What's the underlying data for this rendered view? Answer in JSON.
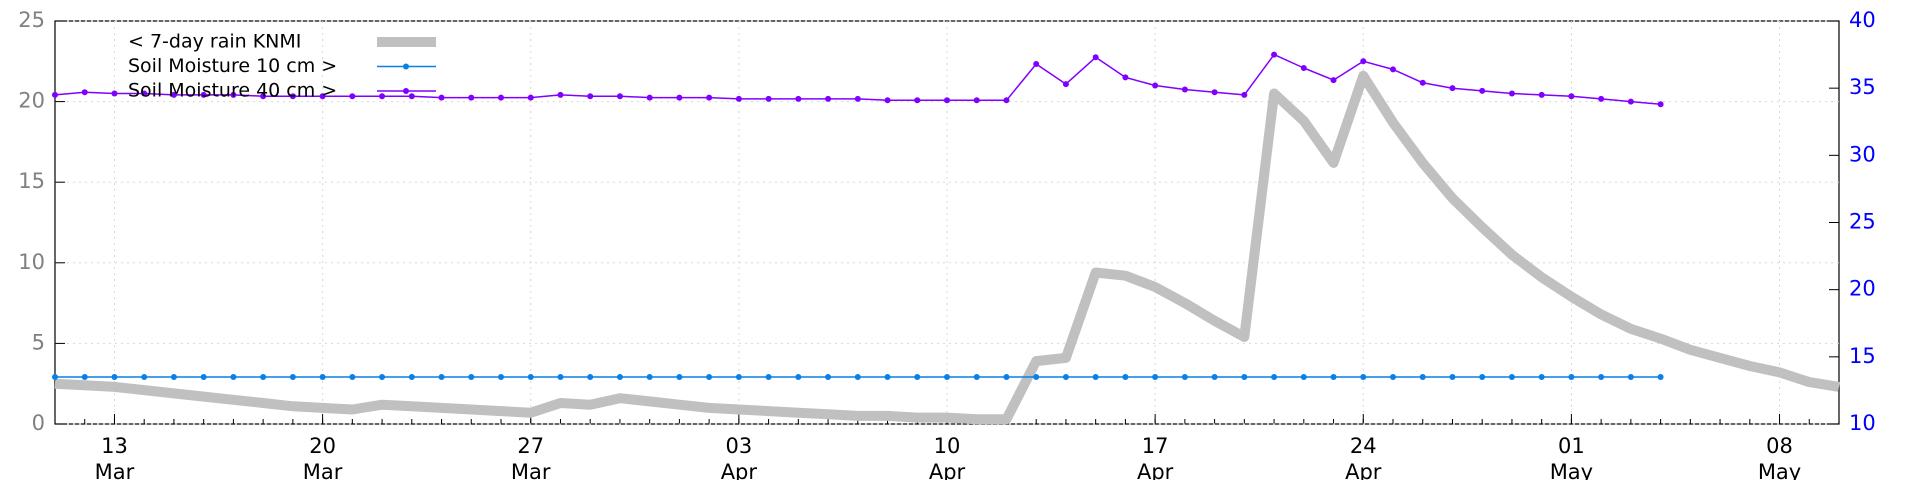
{
  "chart_data": {
    "type": "line",
    "x": [
      "03-11",
      "03-12",
      "03-13",
      "03-14",
      "03-15",
      "03-16",
      "03-17",
      "03-18",
      "03-19",
      "03-20",
      "03-21",
      "03-22",
      "03-23",
      "03-24",
      "03-25",
      "03-26",
      "03-27",
      "03-28",
      "03-29",
      "03-30",
      "03-31",
      "04-01",
      "04-02",
      "04-03",
      "04-04",
      "04-05",
      "04-06",
      "04-07",
      "04-08",
      "04-09",
      "04-10",
      "04-11",
      "04-12",
      "04-13",
      "04-14",
      "04-15",
      "04-16",
      "04-17",
      "04-18",
      "04-19",
      "04-20",
      "04-21",
      "04-22",
      "04-23",
      "04-24",
      "04-25",
      "04-26",
      "04-27",
      "04-28",
      "04-29",
      "04-30",
      "05-01",
      "05-02",
      "05-03",
      "05-04",
      "05-05",
      "05-06",
      "05-07",
      "05-08",
      "05-09",
      "05-10"
    ],
    "series": [
      {
        "name": "< 7-day rain KNMI",
        "color": "#c0c0c0",
        "marker": false,
        "values": [
          2.5,
          2.4,
          2.3,
          2.1,
          1.9,
          1.7,
          1.5,
          1.3,
          1.1,
          1.0,
          0.9,
          1.2,
          1.1,
          1.0,
          0.9,
          0.8,
          0.7,
          1.3,
          1.2,
          1.6,
          1.4,
          1.2,
          1.0,
          0.9,
          0.8,
          0.7,
          0.6,
          0.5,
          0.5,
          0.4,
          0.4,
          0.3,
          0.3,
          3.9,
          4.1,
          9.4,
          9.2,
          8.5,
          7.5,
          6.4,
          5.4,
          20.5,
          18.8,
          16.2,
          21.6,
          18.7,
          16.2,
          14.0,
          12.2,
          10.5,
          9.1,
          7.9,
          6.8,
          5.9,
          5.3,
          4.6,
          4.1,
          3.6,
          3.2,
          2.6,
          2.3
        ]
      },
      {
        "name": "Soil Moisture 10 cm >",
        "color": "#0a7fe8",
        "marker": true,
        "axis": "y2",
        "values": [
          13.5,
          13.5,
          13.5,
          13.5,
          13.5,
          13.5,
          13.5,
          13.5,
          13.5,
          13.5,
          13.5,
          13.5,
          13.5,
          13.5,
          13.5,
          13.5,
          13.5,
          13.5,
          13.5,
          13.5,
          13.5,
          13.5,
          13.5,
          13.5,
          13.5,
          13.5,
          13.5,
          13.5,
          13.5,
          13.5,
          13.5,
          13.5,
          13.5,
          13.5,
          13.5,
          13.5,
          13.5,
          13.5,
          13.5,
          13.5,
          13.5,
          13.5,
          13.5,
          13.5,
          13.5,
          13.5,
          13.5,
          13.5,
          13.5,
          13.5,
          13.5,
          13.5,
          13.5,
          13.5,
          13.5,
          null,
          null,
          null,
          null,
          null,
          null
        ]
      },
      {
        "name": "Soil Moisture 40 cm >",
        "color": "#8000ff",
        "marker": true,
        "axis": "y2",
        "values": [
          34.5,
          34.7,
          34.6,
          34.6,
          34.5,
          34.5,
          34.5,
          34.4,
          34.4,
          34.4,
          34.4,
          34.4,
          34.4,
          34.3,
          34.3,
          34.3,
          34.3,
          34.5,
          34.4,
          34.4,
          34.3,
          34.3,
          34.3,
          34.2,
          34.2,
          34.2,
          34.2,
          34.2,
          34.1,
          34.1,
          34.1,
          34.1,
          34.1,
          36.8,
          35.3,
          37.3,
          35.8,
          35.2,
          34.9,
          34.7,
          34.5,
          37.5,
          36.5,
          35.6,
          37.0,
          36.4,
          35.4,
          35.0,
          34.8,
          34.6,
          34.5,
          34.4,
          34.2,
          34.0,
          33.8,
          null,
          null,
          null,
          null,
          null,
          null
        ]
      }
    ],
    "xlim": [
      "03-11",
      "05-10"
    ],
    "xticks": [
      {
        "value": "03-13",
        "label": "13 Mar"
      },
      {
        "value": "03-20",
        "label": "20 Mar"
      },
      {
        "value": "03-27",
        "label": "27 Mar"
      },
      {
        "value": "04-03",
        "label": "03 Apr"
      },
      {
        "value": "04-10",
        "label": "10 Apr"
      },
      {
        "value": "04-17",
        "label": "17 Apr"
      },
      {
        "value": "04-24",
        "label": "24 Apr"
      },
      {
        "value": "05-01",
        "label": "01 May"
      },
      {
        "value": "05-08",
        "label": "08 May"
      }
    ],
    "ylim": [
      0,
      25
    ],
    "yticks": [
      0,
      5,
      10,
      15,
      20,
      25
    ],
    "y2lim": [
      10,
      40
    ],
    "y2ticks": [
      10,
      15,
      20,
      25,
      30,
      35,
      40
    ],
    "grid": true,
    "legend": "upper-left"
  }
}
